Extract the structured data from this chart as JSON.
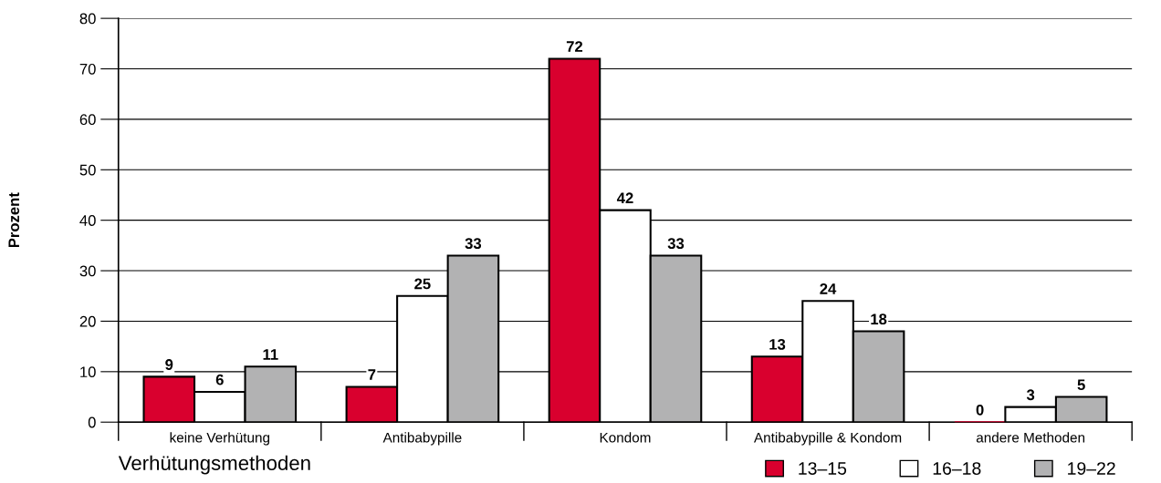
{
  "chart_data": {
    "type": "bar",
    "xlabel": "Verhütungsmethoden",
    "ylabel": "Prozent",
    "categories": [
      "keine Verhütung",
      "Antibabypille",
      "Kondom",
      "Antibabypille & Kondom",
      "andere Methoden"
    ],
    "series": [
      {
        "name": "13–15",
        "color": "#d9002e",
        "values": [
          9,
          7,
          72,
          13,
          0
        ]
      },
      {
        "name": "16–18",
        "color": "#ffffff",
        "values": [
          6,
          25,
          42,
          24,
          3
        ]
      },
      {
        "name": "19–22",
        "color": "#b2b2b3",
        "values": [
          11,
          33,
          33,
          18,
          5
        ]
      }
    ],
    "ylim": [
      0,
      80
    ],
    "yticks": [
      0,
      10,
      20,
      30,
      40,
      50,
      60,
      70,
      80
    ],
    "grid": "y",
    "legend": "bottom right",
    "data_labels": true
  }
}
